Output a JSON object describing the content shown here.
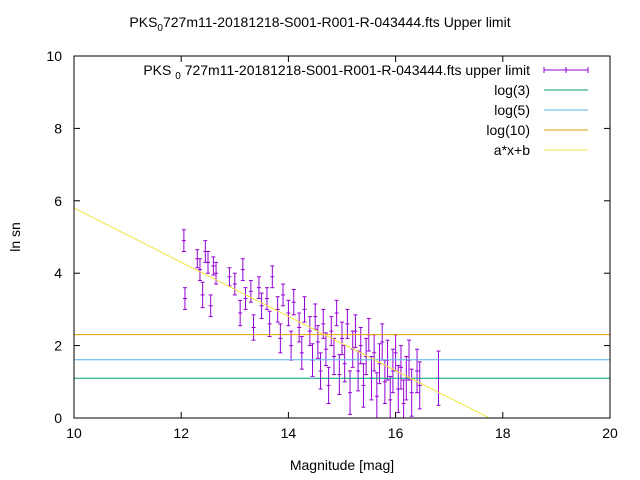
{
  "chart_data": {
    "type": "scatter",
    "title": "PKS 0727m11-20181218-S001-R001-R-043444.fts Upper limit",
    "title_parts": {
      "prefix": "PKS",
      "subscript": "0",
      "suffix": "727m11-20181218-S001-R001-R-043444.fts Upper limit"
    },
    "xlabel": "Magnitude [mag]",
    "ylabel": "ln sn",
    "xlim": [
      10,
      20
    ],
    "ylim": [
      0,
      10
    ],
    "x_ticks": [
      "10",
      "12",
      "14",
      "16",
      "18",
      "20"
    ],
    "y_ticks": [
      "0",
      "2",
      "4",
      "6",
      "8",
      "10"
    ],
    "grid": false,
    "legend_position": "top-right",
    "series": [
      {
        "name": "PKS 0727m11-20181218-S001-R001-R-043444.fts upper limit",
        "name_parts": {
          "prefix": "PKS",
          "subscript": "0",
          "suffix": "727m11-20181218-S001-R001-R-043444.fts upper limit"
        },
        "kind": "errorbars",
        "color": "#9400d3",
        "points": [
          {
            "x": 12.05,
            "y": 4.9,
            "err": 0.3
          },
          {
            "x": 12.07,
            "y": 3.3,
            "err": 0.3
          },
          {
            "x": 12.3,
            "y": 4.4,
            "err": 0.25
          },
          {
            "x": 12.35,
            "y": 4.1,
            "err": 0.3
          },
          {
            "x": 12.4,
            "y": 3.4,
            "err": 0.35
          },
          {
            "x": 12.45,
            "y": 4.6,
            "err": 0.3
          },
          {
            "x": 12.5,
            "y": 4.3,
            "err": 0.3
          },
          {
            "x": 12.55,
            "y": 3.1,
            "err": 0.3
          },
          {
            "x": 12.6,
            "y": 4.2,
            "err": 0.25
          },
          {
            "x": 12.65,
            "y": 4.0,
            "err": 0.3
          },
          {
            "x": 12.9,
            "y": 3.9,
            "err": 0.25
          },
          {
            "x": 13.0,
            "y": 3.7,
            "err": 0.3
          },
          {
            "x": 13.1,
            "y": 2.9,
            "err": 0.35
          },
          {
            "x": 13.15,
            "y": 4.1,
            "err": 0.3
          },
          {
            "x": 13.2,
            "y": 3.3,
            "err": 0.3
          },
          {
            "x": 13.3,
            "y": 3.5,
            "err": 0.3
          },
          {
            "x": 13.35,
            "y": 2.5,
            "err": 0.35
          },
          {
            "x": 13.45,
            "y": 3.6,
            "err": 0.3
          },
          {
            "x": 13.5,
            "y": 3.1,
            "err": 0.35
          },
          {
            "x": 13.6,
            "y": 3.3,
            "err": 0.3
          },
          {
            "x": 13.65,
            "y": 2.6,
            "err": 0.35
          },
          {
            "x": 13.7,
            "y": 3.9,
            "err": 0.3
          },
          {
            "x": 13.8,
            "y": 3.0,
            "err": 0.35
          },
          {
            "x": 13.85,
            "y": 2.2,
            "err": 0.4
          },
          {
            "x": 13.9,
            "y": 3.4,
            "err": 0.3
          },
          {
            "x": 14.0,
            "y": 2.9,
            "err": 0.35
          },
          {
            "x": 14.05,
            "y": 2.0,
            "err": 0.4
          },
          {
            "x": 14.1,
            "y": 3.2,
            "err": 0.35
          },
          {
            "x": 14.2,
            "y": 2.5,
            "err": 0.4
          },
          {
            "x": 14.25,
            "y": 1.8,
            "err": 0.45
          },
          {
            "x": 14.3,
            "y": 3.0,
            "err": 0.35
          },
          {
            "x": 14.4,
            "y": 2.4,
            "err": 0.4
          },
          {
            "x": 14.45,
            "y": 1.6,
            "err": 0.45
          },
          {
            "x": 14.5,
            "y": 2.8,
            "err": 0.35
          },
          {
            "x": 14.55,
            "y": 2.1,
            "err": 0.45
          },
          {
            "x": 14.6,
            "y": 1.3,
            "err": 0.5
          },
          {
            "x": 14.65,
            "y": 2.6,
            "err": 0.4
          },
          {
            "x": 14.7,
            "y": 1.9,
            "err": 0.45
          },
          {
            "x": 14.75,
            "y": 0.9,
            "err": 0.5
          },
          {
            "x": 14.8,
            "y": 2.4,
            "err": 0.4
          },
          {
            "x": 14.85,
            "y": 1.7,
            "err": 0.5
          },
          {
            "x": 14.9,
            "y": 2.9,
            "err": 0.35
          },
          {
            "x": 14.95,
            "y": 1.2,
            "err": 0.55
          },
          {
            "x": 15.0,
            "y": 2.2,
            "err": 0.45
          },
          {
            "x": 15.05,
            "y": 1.5,
            "err": 0.5
          },
          {
            "x": 15.1,
            "y": 2.6,
            "err": 0.4
          },
          {
            "x": 15.15,
            "y": 0.7,
            "err": 0.6
          },
          {
            "x": 15.2,
            "y": 1.9,
            "err": 0.5
          },
          {
            "x": 15.25,
            "y": 2.4,
            "err": 0.45
          },
          {
            "x": 15.3,
            "y": 1.3,
            "err": 0.55
          },
          {
            "x": 15.35,
            "y": 2.0,
            "err": 0.5
          },
          {
            "x": 15.4,
            "y": 0.9,
            "err": 0.6
          },
          {
            "x": 15.45,
            "y": 1.7,
            "err": 0.5
          },
          {
            "x": 15.5,
            "y": 2.3,
            "err": 0.45
          },
          {
            "x": 15.55,
            "y": 1.1,
            "err": 0.6
          },
          {
            "x": 15.6,
            "y": 1.8,
            "err": 0.5
          },
          {
            "x": 15.65,
            "y": 0.6,
            "err": 0.65
          },
          {
            "x": 15.7,
            "y": 1.5,
            "err": 0.55
          },
          {
            "x": 15.75,
            "y": 2.1,
            "err": 0.5
          },
          {
            "x": 15.8,
            "y": 1.0,
            "err": 0.6
          },
          {
            "x": 15.85,
            "y": 1.6,
            "err": 0.55
          },
          {
            "x": 15.9,
            "y": 0.5,
            "err": 0.65
          },
          {
            "x": 15.95,
            "y": 1.3,
            "err": 0.6
          },
          {
            "x": 16.0,
            "y": 1.8,
            "err": 0.5
          },
          {
            "x": 16.05,
            "y": 0.8,
            "err": 0.65
          },
          {
            "x": 16.1,
            "y": 1.4,
            "err": 0.6
          },
          {
            "x": 16.15,
            "y": 0.4,
            "err": 0.65
          },
          {
            "x": 16.2,
            "y": 1.1,
            "err": 0.6
          },
          {
            "x": 16.25,
            "y": 1.6,
            "err": 0.55
          },
          {
            "x": 16.3,
            "y": 0.7,
            "err": 0.65
          },
          {
            "x": 16.4,
            "y": 1.3,
            "err": 0.6
          },
          {
            "x": 16.45,
            "y": 0.9,
            "err": 0.65
          },
          {
            "x": 16.8,
            "y": 1.1,
            "err": 0.75
          }
        ]
      },
      {
        "name": "log(3)",
        "kind": "hline",
        "value": 1.0986,
        "color": "#009e73"
      },
      {
        "name": "log(5)",
        "kind": "hline",
        "value": 1.6094,
        "color": "#56b4e9"
      },
      {
        "name": "log(10)",
        "kind": "hline",
        "value": 2.3026,
        "color": "#e69f00"
      },
      {
        "name": "a*x+b",
        "kind": "fit_line",
        "x": [
          10,
          17.75
        ],
        "y": [
          5.8,
          0
        ],
        "color": "#f0e442"
      }
    ]
  }
}
